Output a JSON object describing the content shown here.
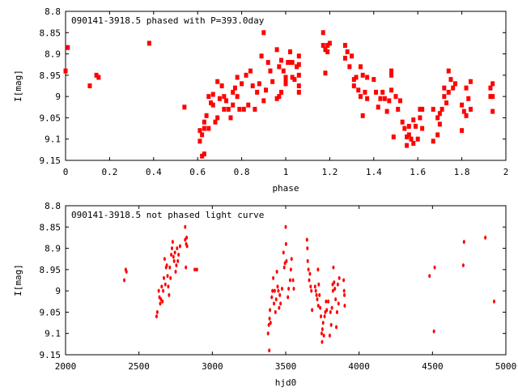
{
  "chart_data": [
    {
      "type": "scatter",
      "title": "090141-3918.5 phased with P=393.0day",
      "xlabel": "phase",
      "ylabel": "I[mag]",
      "xlim": [
        0,
        2
      ],
      "ylim": [
        8.8,
        9.15
      ],
      "y_inverted": true,
      "xticks": [
        "0",
        "0.2",
        "0.4",
        "0.6",
        "0.8",
        "1",
        "1.2",
        "1.4",
        "1.6",
        "1.8",
        "2"
      ],
      "yticks": [
        "8.8",
        "8.85",
        "8.9",
        "8.95",
        "9",
        "9.05",
        "9.1",
        "9.15"
      ],
      "color": "#ff0000",
      "points": [
        [
          0.0,
          8.94
        ],
        [
          0.01,
          8.885
        ],
        [
          0.11,
          8.975
        ],
        [
          0.14,
          8.95
        ],
        [
          0.15,
          8.955
        ],
        [
          0.38,
          8.875
        ],
        [
          0.54,
          9.025
        ],
        [
          0.61,
          9.08
        ],
        [
          0.61,
          9.105
        ],
        [
          0.62,
          9.14
        ],
        [
          0.63,
          9.135
        ],
        [
          0.62,
          9.09
        ],
        [
          0.63,
          9.075
        ],
        [
          0.63,
          9.06
        ],
        [
          0.64,
          9.045
        ],
        [
          0.65,
          9.075
        ],
        [
          0.65,
          9.0
        ],
        [
          0.66,
          9.015
        ],
        [
          0.67,
          8.995
        ],
        [
          0.67,
          9.02
        ],
        [
          0.68,
          9.06
        ],
        [
          0.69,
          9.05
        ],
        [
          0.69,
          8.965
        ],
        [
          0.7,
          9.005
        ],
        [
          0.71,
          8.975
        ],
        [
          0.72,
          9.03
        ],
        [
          0.72,
          9.0
        ],
        [
          0.73,
          9.01
        ],
        [
          0.74,
          9.03
        ],
        [
          0.75,
          9.05
        ],
        [
          0.76,
          8.99
        ],
        [
          0.76,
          9.02
        ],
        [
          0.77,
          8.98
        ],
        [
          0.78,
          8.955
        ],
        [
          0.78,
          9.0
        ],
        [
          0.79,
          9.03
        ],
        [
          0.8,
          8.97
        ],
        [
          0.81,
          9.03
        ],
        [
          0.82,
          8.95
        ],
        [
          0.83,
          9.02
        ],
        [
          0.84,
          8.94
        ],
        [
          0.85,
          8.975
        ],
        [
          0.86,
          9.03
        ],
        [
          0.87,
          8.99
        ],
        [
          0.88,
          8.97
        ],
        [
          0.89,
          8.905
        ],
        [
          0.9,
          9.01
        ],
        [
          0.91,
          8.985
        ],
        [
          0.92,
          8.92
        ],
        [
          0.93,
          8.94
        ],
        [
          0.94,
          8.965
        ],
        [
          0.9,
          8.85
        ],
        [
          0.96,
          8.89
        ],
        [
          0.97,
          8.93
        ],
        [
          0.97,
          9.0
        ],
        [
          0.98,
          8.915
        ],
        [
          0.99,
          8.94
        ],
        [
          1.0,
          8.96
        ],
        [
          0.98,
          8.99
        ],
        [
          0.96,
          9.005
        ],
        [
          1.03,
          8.92
        ],
        [
          1.03,
          8.955
        ],
        [
          1.04,
          8.96
        ],
        [
          1.05,
          8.93
        ],
        [
          1.06,
          8.95
        ],
        [
          1.06,
          8.975
        ],
        [
          1.06,
          8.925
        ],
        [
          1.06,
          8.905
        ],
        [
          1.02,
          8.92
        ],
        [
          1.0,
          8.955
        ],
        [
          1.0,
          8.97
        ],
        [
          1.01,
          8.92
        ],
        [
          1.02,
          8.895
        ],
        [
          1.06,
          8.99
        ],
        [
          1.17,
          8.85
        ],
        [
          1.17,
          8.88
        ],
        [
          1.18,
          8.89
        ],
        [
          1.18,
          8.945
        ],
        [
          1.19,
          8.88
        ],
        [
          1.19,
          8.895
        ],
        [
          1.2,
          8.875
        ],
        [
          1.27,
          8.88
        ],
        [
          1.27,
          8.91
        ],
        [
          1.28,
          8.895
        ],
        [
          1.29,
          8.93
        ],
        [
          1.3,
          8.905
        ],
        [
          1.31,
          8.96
        ],
        [
          1.31,
          8.975
        ],
        [
          1.32,
          8.955
        ],
        [
          1.33,
          8.985
        ],
        [
          1.34,
          9.0
        ],
        [
          1.34,
          8.93
        ],
        [
          1.35,
          8.95
        ],
        [
          1.35,
          9.045
        ],
        [
          1.36,
          8.99
        ],
        [
          1.37,
          8.955
        ],
        [
          1.37,
          9.005
        ],
        [
          1.4,
          8.96
        ],
        [
          1.41,
          8.99
        ],
        [
          1.42,
          9.025
        ],
        [
          1.43,
          9.005
        ],
        [
          1.44,
          8.99
        ],
        [
          1.45,
          9.005
        ],
        [
          1.46,
          9.035
        ],
        [
          1.47,
          9.01
        ],
        [
          1.48,
          8.95
        ],
        [
          1.48,
          8.94
        ],
        [
          1.48,
          8.985
        ],
        [
          1.49,
          9.095
        ],
        [
          1.5,
          9.0
        ],
        [
          1.51,
          9.03
        ],
        [
          1.52,
          9.01
        ],
        [
          1.53,
          9.06
        ],
        [
          1.54,
          9.075
        ],
        [
          1.55,
          9.095
        ],
        [
          1.55,
          9.115
        ],
        [
          1.56,
          9.07
        ],
        [
          1.56,
          9.09
        ],
        [
          1.57,
          9.1
        ],
        [
          1.58,
          9.11
        ],
        [
          1.58,
          9.055
        ],
        [
          1.59,
          9.07
        ],
        [
          1.6,
          9.1
        ],
        [
          1.61,
          9.05
        ],
        [
          1.61,
          9.03
        ],
        [
          1.62,
          9.075
        ],
        [
          1.62,
          9.03
        ],
        [
          1.67,
          9.03
        ],
        [
          1.67,
          9.105
        ],
        [
          1.69,
          9.05
        ],
        [
          1.69,
          9.09
        ],
        [
          1.7,
          9.065
        ],
        [
          1.7,
          9.04
        ],
        [
          1.71,
          9.03
        ],
        [
          1.72,
          8.98
        ],
        [
          1.72,
          9.0
        ],
        [
          1.73,
          9.015
        ],
        [
          1.74,
          8.99
        ],
        [
          1.74,
          8.94
        ],
        [
          1.75,
          8.96
        ],
        [
          1.76,
          8.98
        ],
        [
          1.77,
          8.97
        ],
        [
          1.8,
          9.02
        ],
        [
          1.8,
          9.08
        ],
        [
          1.81,
          9.035
        ],
        [
          1.82,
          8.98
        ],
        [
          1.82,
          9.045
        ],
        [
          1.83,
          9.005
        ],
        [
          1.84,
          8.965
        ],
        [
          1.84,
          9.03
        ],
        [
          1.93,
          9.0
        ],
        [
          1.93,
          8.98
        ],
        [
          1.94,
          8.97
        ],
        [
          1.94,
          9.035
        ],
        [
          1.94,
          9.0
        ]
      ]
    },
    {
      "type": "scatter",
      "title": "090141-3918.5 not phased light curve",
      "xlabel": "hjd0",
      "ylabel": "I[mag]",
      "xlim": [
        2000,
        5000
      ],
      "ylim": [
        8.8,
        9.15
      ],
      "y_inverted": true,
      "xticks": [
        "2000",
        "2500",
        "3000",
        "3500",
        "4000",
        "4500",
        "5000"
      ],
      "yticks": [
        "8.8",
        "8.85",
        "8.9",
        "8.95",
        "9",
        "9.05",
        "9.1",
        "9.15"
      ],
      "color": "#ff0000",
      "points": [
        [
          2400,
          8.975
        ],
        [
          2410,
          8.95
        ],
        [
          2415,
          8.955
        ],
        [
          2620,
          9.06
        ],
        [
          2625,
          9.05
        ],
        [
          2635,
          9.0
        ],
        [
          2640,
          9.015
        ],
        [
          2645,
          9.03
        ],
        [
          2650,
          9.02
        ],
        [
          2655,
          8.99
        ],
        [
          2660,
          9.025
        ],
        [
          2665,
          9.0
        ],
        [
          2670,
          8.97
        ],
        [
          2675,
          8.925
        ],
        [
          2680,
          8.985
        ],
        [
          2685,
          8.945
        ],
        [
          2690,
          8.94
        ],
        [
          2695,
          8.965
        ],
        [
          2700,
          8.99
        ],
        [
          2705,
          9.01
        ],
        [
          2710,
          8.945
        ],
        [
          2715,
          8.97
        ],
        [
          2720,
          8.915
        ],
        [
          2725,
          8.9
        ],
        [
          2730,
          8.885
        ],
        [
          2735,
          8.92
        ],
        [
          2740,
          8.93
        ],
        [
          2745,
          8.91
        ],
        [
          2750,
          8.955
        ],
        [
          2755,
          8.94
        ],
        [
          2760,
          8.9
        ],
        [
          2765,
          8.93
        ],
        [
          2770,
          8.915
        ],
        [
          2780,
          8.895
        ],
        [
          2815,
          8.85
        ],
        [
          2815,
          8.88
        ],
        [
          2820,
          8.945
        ],
        [
          2822,
          8.89
        ],
        [
          2825,
          8.875
        ],
        [
          2828,
          8.895
        ],
        [
          2880,
          8.95
        ],
        [
          2895,
          8.95
        ],
        [
          3380,
          9.1
        ],
        [
          3385,
          9.08
        ],
        [
          3388,
          9.14
        ],
        [
          3390,
          9.065
        ],
        [
          3393,
          9.045
        ],
        [
          3397,
          9.075
        ],
        [
          3405,
          9.015
        ],
        [
          3410,
          9.0
        ],
        [
          3415,
          8.97
        ],
        [
          3420,
          9.03
        ],
        [
          3425,
          9.0
        ],
        [
          3430,
          9.05
        ],
        [
          3435,
          9.02
        ],
        [
          3440,
          8.955
        ],
        [
          3445,
          8.99
        ],
        [
          3450,
          9.0
        ],
        [
          3455,
          9.04
        ],
        [
          3460,
          9.01
        ],
        [
          3465,
          9.03
        ],
        [
          3475,
          8.995
        ],
        [
          3485,
          8.91
        ],
        [
          3490,
          8.945
        ],
        [
          3495,
          8.935
        ],
        [
          3500,
          8.85
        ],
        [
          3502,
          8.89
        ],
        [
          3505,
          8.93
        ],
        [
          3515,
          9.015
        ],
        [
          3520,
          8.995
        ],
        [
          3530,
          8.975
        ],
        [
          3535,
          8.95
        ],
        [
          3540,
          8.925
        ],
        [
          3550,
          8.975
        ],
        [
          3555,
          8.995
        ],
        [
          3645,
          8.88
        ],
        [
          3648,
          8.9
        ],
        [
          3650,
          8.93
        ],
        [
          3655,
          8.95
        ],
        [
          3660,
          8.975
        ],
        [
          3665,
          8.96
        ],
        [
          3670,
          8.99
        ],
        [
          3675,
          9.0
        ],
        [
          3680,
          9.045
        ],
        [
          3700,
          8.99
        ],
        [
          3705,
          9.0
        ],
        [
          3710,
          9.01
        ],
        [
          3715,
          9.02
        ],
        [
          3720,
          8.95
        ],
        [
          3722,
          9.035
        ],
        [
          3725,
          8.985
        ],
        [
          3730,
          9.01
        ],
        [
          3735,
          9.04
        ],
        [
          3740,
          9.06
        ],
        [
          3745,
          9.1
        ],
        [
          3748,
          9.12
        ],
        [
          3750,
          9.09
        ],
        [
          3755,
          9.075
        ],
        [
          3760,
          9.105
        ],
        [
          3765,
          9.06
        ],
        [
          3770,
          9.05
        ],
        [
          3775,
          9.025
        ],
        [
          3780,
          9.045
        ],
        [
          3790,
          9.025
        ],
        [
          3800,
          9.105
        ],
        [
          3805,
          9.05
        ],
        [
          3810,
          9.08
        ],
        [
          3815,
          9.04
        ],
        [
          3820,
          8.985
        ],
        [
          3822,
          9.0
        ],
        [
          3825,
          8.945
        ],
        [
          3830,
          8.98
        ],
        [
          3835,
          8.995
        ],
        [
          3840,
          9.02
        ],
        [
          3845,
          9.085
        ],
        [
          3850,
          9.05
        ],
        [
          3855,
          8.985
        ],
        [
          3860,
          9.03
        ],
        [
          3865,
          8.97
        ],
        [
          3895,
          8.975
        ],
        [
          3898,
          9.0
        ],
        [
          3900,
          9.01
        ],
        [
          3902,
          9.035
        ],
        [
          4480,
          8.965
        ],
        [
          4510,
          9.095
        ],
        [
          4515,
          8.945
        ],
        [
          4710,
          8.94
        ],
        [
          4715,
          8.885
        ],
        [
          4860,
          8.875
        ],
        [
          4920,
          9.025
        ]
      ]
    }
  ]
}
